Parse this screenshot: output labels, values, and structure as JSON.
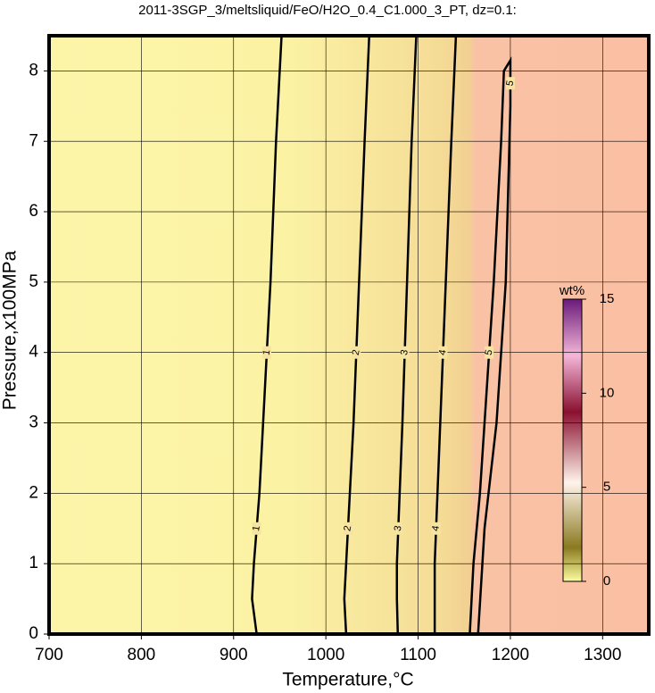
{
  "chart_data": {
    "type": "contour",
    "title": "2011-3SGP_3/meltsliquid/FeO/H2O_0.4_C1.000_3_PT, dz=0.1:",
    "x_label": "Temperature,°C",
    "y_label": "Pressure,x100MPa",
    "xlim": [
      700,
      1350
    ],
    "ylim": [
      0,
      8.5
    ],
    "xticks": [
      700,
      800,
      900,
      1000,
      1100,
      1200,
      1300
    ],
    "yticks": [
      0,
      1,
      2,
      3,
      4,
      5,
      6,
      7,
      8
    ],
    "grid": true,
    "series": [
      {
        "name": "1",
        "color": "#000000",
        "x": [
          925,
          920,
          922,
          928,
          932,
          940,
          946,
          952
        ],
        "y": [
          0,
          0.5,
          1,
          2,
          3,
          5,
          7,
          8.5
        ]
      },
      {
        "name": "2",
        "color": "#000000",
        "x": [
          1022,
          1020,
          1022,
          1026,
          1030,
          1036,
          1042,
          1047
        ],
        "y": [
          0,
          0.5,
          1,
          2,
          3,
          5,
          7,
          8.5
        ]
      },
      {
        "name": "3",
        "color": "#000000",
        "x": [
          1078,
          1077,
          1077,
          1080,
          1083,
          1088,
          1093,
          1098
        ],
        "y": [
          0,
          0.5,
          1,
          2,
          3,
          5,
          7,
          8.5
        ]
      },
      {
        "name": "4",
        "color": "#000000",
        "x": [
          1118,
          1118,
          1118,
          1121,
          1124,
          1130,
          1136,
          1141
        ],
        "y": [
          0,
          0.5,
          1,
          2,
          3,
          5,
          7,
          8.5
        ]
      },
      {
        "name": "5",
        "color": "#000000",
        "x": [
          1156,
          1160,
          1167,
          1172,
          1182,
          1190,
          1193,
          1200,
          1200,
          1195,
          1185,
          1172,
          1165
        ],
        "y": [
          0,
          1,
          2,
          3,
          5,
          7,
          8,
          8.15,
          7.5,
          5,
          3,
          1.5,
          0
        ]
      }
    ],
    "colorbar": {
      "label": "wt%",
      "lim": [
        0,
        15
      ],
      "ticks": [
        0,
        5,
        10,
        15
      ]
    }
  }
}
